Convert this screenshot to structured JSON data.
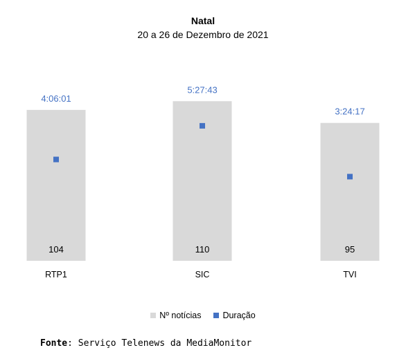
{
  "chart_data": {
    "type": "bar",
    "title": "Natal",
    "subtitle": "20 a 26 de Dezembro de 2021",
    "categories": [
      "RTP1",
      "SIC",
      "TVI"
    ],
    "series": [
      {
        "name": "Nº notícias",
        "values": [
          104,
          110,
          95
        ],
        "labels": [
          "104",
          "110",
          "95"
        ],
        "color": "#d9d9d9"
      },
      {
        "name": "Duração",
        "values": [
          14761,
          19663,
          12257
        ],
        "labels": [
          "4:06:01",
          "5:27:43",
          "3:24:17"
        ],
        "color": "#4472c4"
      }
    ],
    "ylim_bars": [
      0,
      123
    ],
    "ylim_duration": [
      0,
      26000
    ],
    "legend_position": "bottom",
    "grid": false
  },
  "source": {
    "label": "Fonte",
    "text": ": Serviço Telenews da MediaMonitor"
  }
}
